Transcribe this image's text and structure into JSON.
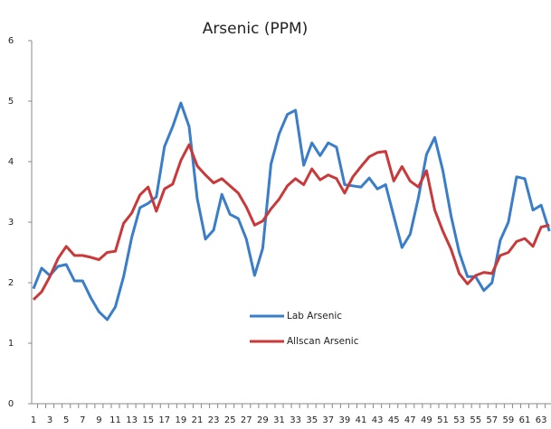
{
  "chart_data": {
    "type": "line",
    "title": "Arsenic (PPM)",
    "categories": [
      1,
      null,
      3,
      null,
      5,
      null,
      7,
      null,
      9,
      null,
      11,
      null,
      13,
      null,
      15,
      null,
      17,
      null,
      19,
      null,
      21,
      null,
      23,
      null,
      25,
      null,
      27,
      null,
      29,
      null,
      31,
      null,
      33,
      null,
      35,
      null,
      37,
      null,
      39,
      null,
      41,
      null,
      43,
      null,
      45,
      null,
      47,
      null,
      49,
      null,
      51,
      null,
      53,
      null,
      55,
      null,
      57,
      null,
      59,
      null,
      61,
      null,
      63,
      null
    ],
    "series": [
      {
        "name": "Lab Arsenic",
        "color": "#3a7dc9",
        "values": [
          1.9,
          2.24,
          2.12,
          2.27,
          2.3,
          2.03,
          2.03,
          1.75,
          1.52,
          1.39,
          1.6,
          2.1,
          2.75,
          3.24,
          3.31,
          3.42,
          4.25,
          4.58,
          4.97,
          4.58,
          3.39,
          2.72,
          2.87,
          3.46,
          3.13,
          3.06,
          2.72,
          2.12,
          2.57,
          3.96,
          4.46,
          4.78,
          4.85,
          3.94,
          4.31,
          4.1,
          4.31,
          4.24,
          3.62,
          3.6,
          3.58,
          3.73,
          3.55,
          3.62,
          3.1,
          2.58,
          2.8,
          3.4,
          4.12,
          4.4,
          3.85,
          3.1,
          2.5,
          2.1,
          2.1,
          1.87,
          2.0,
          2.7,
          3.0,
          3.75,
          3.72,
          3.2,
          3.28,
          2.85
        ]
      },
      {
        "name": "Allscan Arsenic",
        "color": "#c9393a",
        "values": [
          1.72,
          1.85,
          2.1,
          2.4,
          2.6,
          2.45,
          2.45,
          2.42,
          2.38,
          2.5,
          2.52,
          2.98,
          3.15,
          3.45,
          3.58,
          3.18,
          3.55,
          3.63,
          4.02,
          4.28,
          3.93,
          3.78,
          3.65,
          3.72,
          3.6,
          3.48,
          3.25,
          2.95,
          3.02,
          3.22,
          3.38,
          3.6,
          3.72,
          3.62,
          3.88,
          3.7,
          3.78,
          3.72,
          3.48,
          3.75,
          3.92,
          4.08,
          4.15,
          4.17,
          3.68,
          3.92,
          3.68,
          3.58,
          3.85,
          3.2,
          2.85,
          2.55,
          2.15,
          1.98,
          2.12,
          2.17,
          2.15,
          2.45,
          2.5,
          2.68,
          2.73,
          2.6,
          2.92,
          2.95
        ]
      }
    ],
    "ylim": [
      0,
      6
    ],
    "yticks": [
      0,
      1,
      2,
      3,
      4,
      5,
      6
    ]
  }
}
